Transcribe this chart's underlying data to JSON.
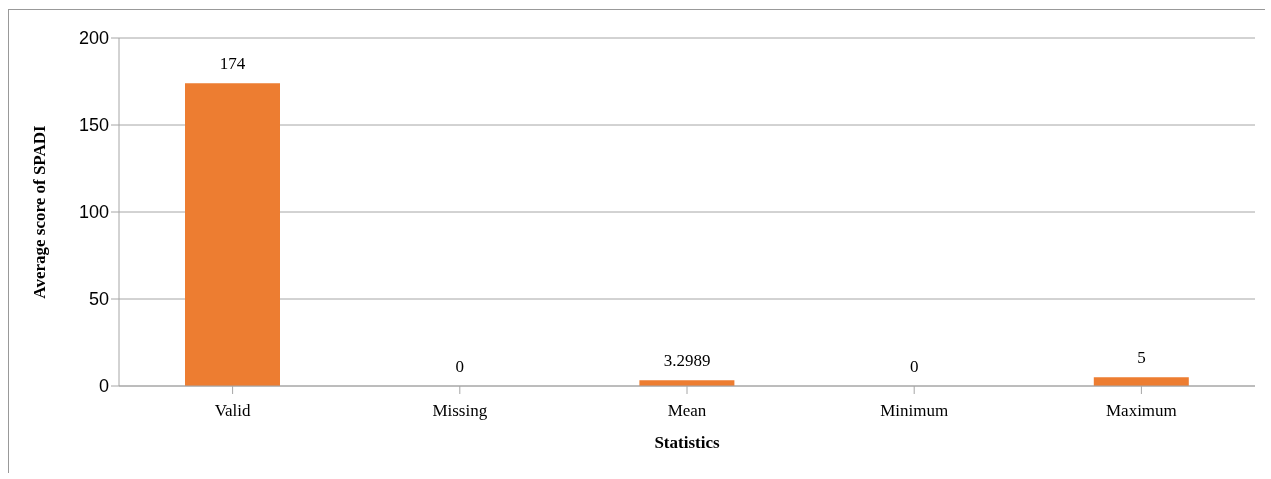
{
  "chart_data": {
    "type": "bar",
    "xlabel": "Statistics",
    "ylabel": "Average score of SPADI",
    "categories": [
      "Valid",
      "Missing",
      "Mean",
      "Minimum",
      "Maximum"
    ],
    "values": [
      174,
      0,
      3.2989,
      0,
      5
    ],
    "color": "#ed7d31",
    "ylim": [
      0,
      200
    ],
    "yticks": [
      0,
      50,
      100,
      150,
      200
    ],
    "grid": "y",
    "data_labels": true,
    "legend": false
  }
}
